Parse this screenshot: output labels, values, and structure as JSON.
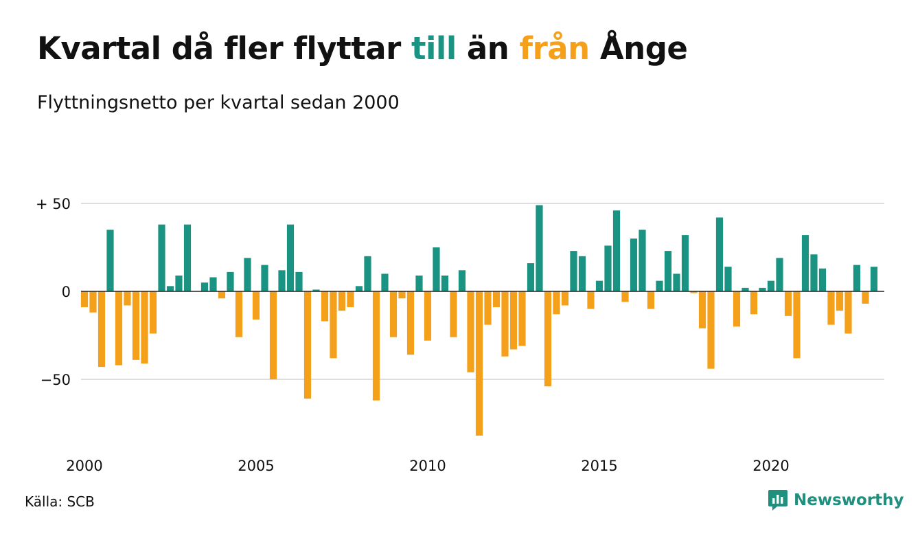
{
  "title": {
    "part1": "Kvartal då fler flyttar ",
    "highlight_pos": "till",
    "part2": " än ",
    "highlight_neg": "från",
    "part3": " Ånge"
  },
  "subtitle": "Flyttningsnetto per kvartal sedan 2000",
  "source": "Källa: SCB",
  "brand": "Newsworthy",
  "colors": {
    "positive": "#1a9382",
    "negative": "#f5a01a",
    "grid": "#dddddd",
    "zero": "#222222"
  },
  "chart_data": {
    "type": "bar",
    "title": "",
    "xlabel": "",
    "ylabel": "",
    "ylim": [
      -82,
      52
    ],
    "y_ticks": [
      {
        "value": 50,
        "label": "+ 50"
      },
      {
        "value": 0,
        "label": "0"
      },
      {
        "value": -50,
        "label": "−50"
      }
    ],
    "x_ticks": [
      {
        "value": 2000,
        "label": "2000"
      },
      {
        "value": 2005,
        "label": "2005"
      },
      {
        "value": 2010,
        "label": "2010"
      },
      {
        "value": 2015,
        "label": "2015"
      },
      {
        "value": 2020,
        "label": "2020"
      }
    ],
    "grid": true,
    "series": [
      {
        "start_year": 2000,
        "values": [
          -9,
          -12,
          -43,
          35,
          -42,
          -8,
          -39,
          -41,
          -24,
          38,
          3,
          9,
          38,
          0,
          5,
          8,
          -4,
          11,
          -26,
          19,
          -16,
          15,
          -50,
          12,
          38,
          11,
          -61,
          1,
          -17,
          -38,
          -11,
          -9,
          3,
          20,
          -62,
          10,
          -26,
          -4,
          -36,
          9,
          -28,
          25,
          9,
          -26,
          12,
          -46,
          -82,
          -19,
          -9,
          -37,
          -33,
          -31,
          16,
          49,
          -54,
          -13,
          -8,
          23,
          20,
          -10,
          6,
          26,
          46,
          -6,
          30,
          35,
          -10,
          6,
          23,
          10,
          32,
          -1,
          -21,
          -44,
          42,
          14,
          -20,
          2,
          -13,
          2,
          6,
          19,
          -14,
          -38,
          32,
          21,
          13,
          -19,
          -11,
          -24,
          15,
          -7,
          14
        ]
      }
    ]
  }
}
